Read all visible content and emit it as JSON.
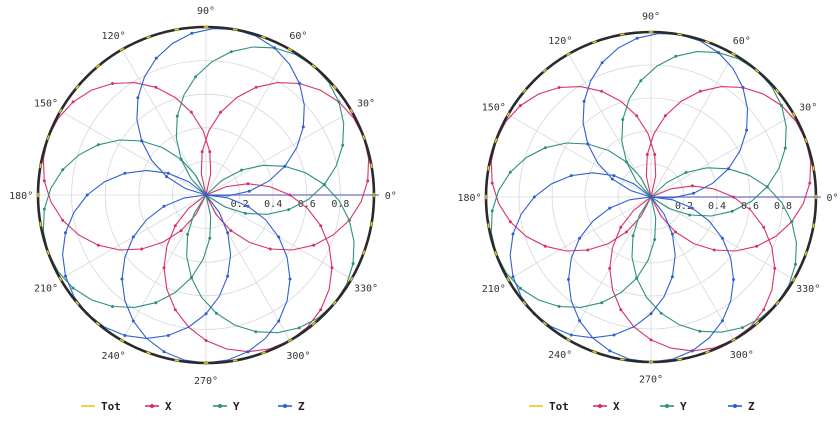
{
  "colors": {
    "Tot": "#e6c81e",
    "X": "#d8316a",
    "Y": "#2f8f7f",
    "Z": "#2f5fcf",
    "frame": "#2a2a2a",
    "grid": "#d5d8dc",
    "axis_line": "#8a86c8"
  },
  "chart_data": [
    {
      "type": "line",
      "coordinate_system": "polar",
      "title": "",
      "radial_ticks": [
        "0.2",
        "0.4",
        "0.6",
        "0.8"
      ],
      "radial_range": [
        0,
        1
      ],
      "angle_ticks": [
        "0°",
        "30°",
        "60°",
        "90°",
        "120°",
        "150°",
        "180°",
        "210°",
        "240°",
        "270°",
        "300°",
        "330°"
      ],
      "grid": true,
      "legend_position": "bottom",
      "series": [
        {
          "name": "Tot",
          "curve": "circle",
          "r": 1.0,
          "marker": "tick"
        },
        {
          "name": "X",
          "curve": "r=|cos(θ-φ)|",
          "petal_directions_deg": [
            20,
            160,
            300
          ],
          "marker": "dot"
        },
        {
          "name": "Y",
          "curve": "r=|cos(θ-φ)|",
          "petal_directions_deg": [
            50,
            200,
            320
          ],
          "marker": "dot"
        },
        {
          "name": "Z",
          "curve": "r=|cos(θ-φ)|",
          "petal_directions_deg": [
            80,
            225,
            270
          ],
          "marker": "dot"
        }
      ]
    },
    {
      "type": "line",
      "coordinate_system": "polar",
      "title": "",
      "radial_ticks": [
        "0.2",
        "0.4",
        "0.6",
        "0.8"
      ],
      "radial_range": [
        0,
        1
      ],
      "angle_ticks": [
        "0°",
        "30°",
        "60°",
        "90°",
        "120°",
        "150°",
        "180°",
        "210°",
        "240°",
        "270°",
        "300°",
        "330°"
      ],
      "grid": true,
      "legend_position": "bottom",
      "series": [
        {
          "name": "Tot",
          "curve": "circle",
          "r": 1.0,
          "marker": "tick"
        },
        {
          "name": "X",
          "curve": "r=|cos(θ-φ)|",
          "petal_directions_deg": [
            20,
            160,
            300
          ],
          "marker": "dot"
        },
        {
          "name": "Y",
          "curve": "r=|cos(θ-φ)|",
          "petal_directions_deg": [
            50,
            200,
            320
          ],
          "marker": "dot"
        },
        {
          "name": "Z",
          "curve": "r=|cos(θ-φ)|",
          "petal_directions_deg": [
            80,
            225,
            270
          ],
          "marker": "dot"
        }
      ]
    }
  ]
}
